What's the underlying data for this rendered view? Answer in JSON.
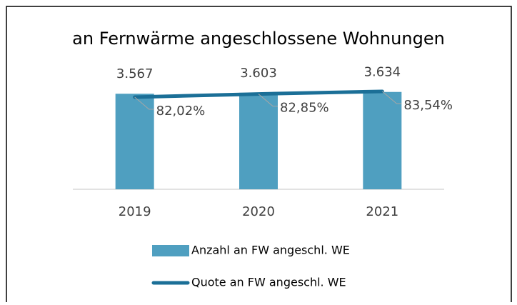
{
  "chart_data": {
    "type": "bar",
    "title": "an Fernwärme angeschlossene Wohnungen",
    "categories": [
      "2019",
      "2020",
      "2021"
    ],
    "series": [
      {
        "name": "Anzahl an FW angeschl. WE",
        "type": "bar",
        "color": "#4f9fc0",
        "values": [
          3567,
          3603,
          3634
        ],
        "value_labels": [
          "3.567",
          "3.603",
          "3.634"
        ]
      },
      {
        "name": "Quote an FW angeschl. WE",
        "type": "line",
        "axis": "y2",
        "color": "#1b6f97",
        "values": [
          82.02,
          82.85,
          83.54
        ],
        "value_labels": [
          "82,02%",
          "82,85%",
          "83,54%"
        ]
      }
    ],
    "ylim": [
      0,
      4000
    ],
    "y2lim": [
      57.5,
      86
    ],
    "legend": "bottom"
  }
}
